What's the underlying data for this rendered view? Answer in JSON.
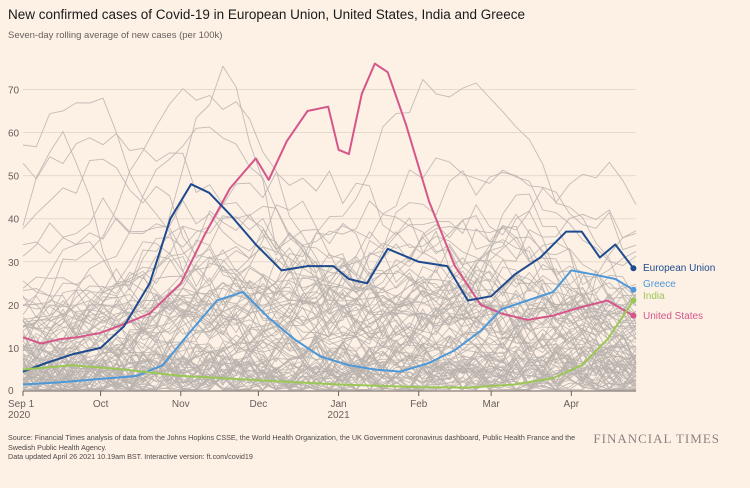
{
  "header": {
    "title": "New confirmed cases of Covid-19 in European Union, United States, India and Greece",
    "subtitle": "Seven-day rolling average of new cases (per 100k)"
  },
  "footer": {
    "source": "Source: Financial Times analysis of data from the Johns Hopkins CSSE, the World Health Organization, the UK Government coronavirus dashboard, Public Health France and the Swedish Public Health Agency.",
    "updated": "Data updated April 26 2021 10.19am BST. Interactive version: ft.com/covid19",
    "brand": "FINANCIAL TIMES"
  },
  "chart_data": {
    "type": "line",
    "x_unit": "date",
    "xlim": [
      "2020-09-01",
      "2021-04-26"
    ],
    "ylim": [
      0,
      78
    ],
    "grid": true,
    "y_ticks": [
      0,
      10,
      20,
      30,
      40,
      50,
      60,
      70
    ],
    "x_ticks": [
      {
        "date": "2020-09-01",
        "label": "Sep 1",
        "label2": "2020"
      },
      {
        "date": "2020-10-01",
        "label": "Oct",
        "label2": ""
      },
      {
        "date": "2020-11-01",
        "label": "Nov",
        "label2": ""
      },
      {
        "date": "2020-12-01",
        "label": "Dec",
        "label2": ""
      },
      {
        "date": "2021-01-01",
        "label": "Jan",
        "label2": "2021"
      },
      {
        "date": "2021-02-01",
        "label": "Feb",
        "label2": ""
      },
      {
        "date": "2021-03-01",
        "label": "Mar",
        "label2": ""
      },
      {
        "date": "2021-04-01",
        "label": "Apr",
        "label2": ""
      }
    ],
    "background_series": "other countries (grey)",
    "series": [
      {
        "name": "United States",
        "color": "#d5568a",
        "x": [
          "2020-09-01",
          "2020-09-08",
          "2020-09-15",
          "2020-09-22",
          "2020-10-01",
          "2020-10-10",
          "2020-10-20",
          "2020-11-01",
          "2020-11-10",
          "2020-11-20",
          "2020-11-30",
          "2020-12-05",
          "2020-12-12",
          "2020-12-20",
          "2020-12-28",
          "2021-01-01",
          "2021-01-05",
          "2021-01-10",
          "2021-01-15",
          "2021-01-20",
          "2021-01-27",
          "2021-02-05",
          "2021-02-15",
          "2021-02-25",
          "2021-03-05",
          "2021-03-15",
          "2021-03-25",
          "2021-04-05",
          "2021-04-15",
          "2021-04-25"
        ],
        "y": [
          12.5,
          11,
          12,
          12.5,
          13.5,
          15.5,
          18,
          25,
          36,
          47,
          54,
          49,
          58,
          65,
          66,
          56,
          55,
          69,
          76,
          74,
          62,
          44,
          29,
          20,
          18,
          16.5,
          17.5,
          19.5,
          21,
          17.5
        ]
      },
      {
        "name": "European Union",
        "color": "#1e4b8f",
        "x": [
          "2020-09-01",
          "2020-09-10",
          "2020-09-20",
          "2020-10-01",
          "2020-10-10",
          "2020-10-20",
          "2020-10-28",
          "2020-11-05",
          "2020-11-12",
          "2020-11-20",
          "2020-11-30",
          "2020-12-10",
          "2020-12-20",
          "2020-12-30",
          "2021-01-05",
          "2021-01-12",
          "2021-01-20",
          "2021-02-01",
          "2021-02-12",
          "2021-02-20",
          "2021-03-01",
          "2021-03-10",
          "2021-03-20",
          "2021-03-30",
          "2021-04-05",
          "2021-04-12",
          "2021-04-18",
          "2021-04-25"
        ],
        "y": [
          4.5,
          6.5,
          8.5,
          10,
          15,
          25,
          40,
          48,
          46,
          41,
          34,
          28,
          29,
          29,
          26,
          25,
          33,
          30,
          29,
          21,
          22,
          27,
          31,
          37,
          37,
          31,
          34,
          28.5
        ]
      },
      {
        "name": "Greece",
        "color": "#4d98d8",
        "x": [
          "2020-09-01",
          "2020-09-15",
          "2020-10-01",
          "2020-10-15",
          "2020-10-25",
          "2020-11-05",
          "2020-11-15",
          "2020-11-25",
          "2020-12-05",
          "2020-12-15",
          "2020-12-25",
          "2021-01-05",
          "2021-01-15",
          "2021-01-25",
          "2021-02-05",
          "2021-02-15",
          "2021-02-25",
          "2021-03-05",
          "2021-03-15",
          "2021-03-25",
          "2021-04-01",
          "2021-04-10",
          "2021-04-18",
          "2021-04-25"
        ],
        "y": [
          1.5,
          2,
          2.8,
          3.5,
          6,
          14,
          21,
          23,
          17,
          12,
          8,
          6,
          5,
          4.5,
          6.5,
          9.5,
          14,
          19,
          21,
          23,
          28,
          27,
          26,
          23.5
        ]
      },
      {
        "name": "India",
        "color": "#9ac755",
        "x": [
          "2020-09-01",
          "2020-09-20",
          "2020-10-10",
          "2020-11-01",
          "2020-12-01",
          "2021-01-01",
          "2021-02-01",
          "2021-02-20",
          "2021-03-10",
          "2021-03-25",
          "2021-04-05",
          "2021-04-15",
          "2021-04-25"
        ],
        "y": [
          5,
          6,
          5,
          3.5,
          2.5,
          1.5,
          0.9,
          0.8,
          1.5,
          3,
          6,
          12,
          21
        ]
      }
    ]
  }
}
